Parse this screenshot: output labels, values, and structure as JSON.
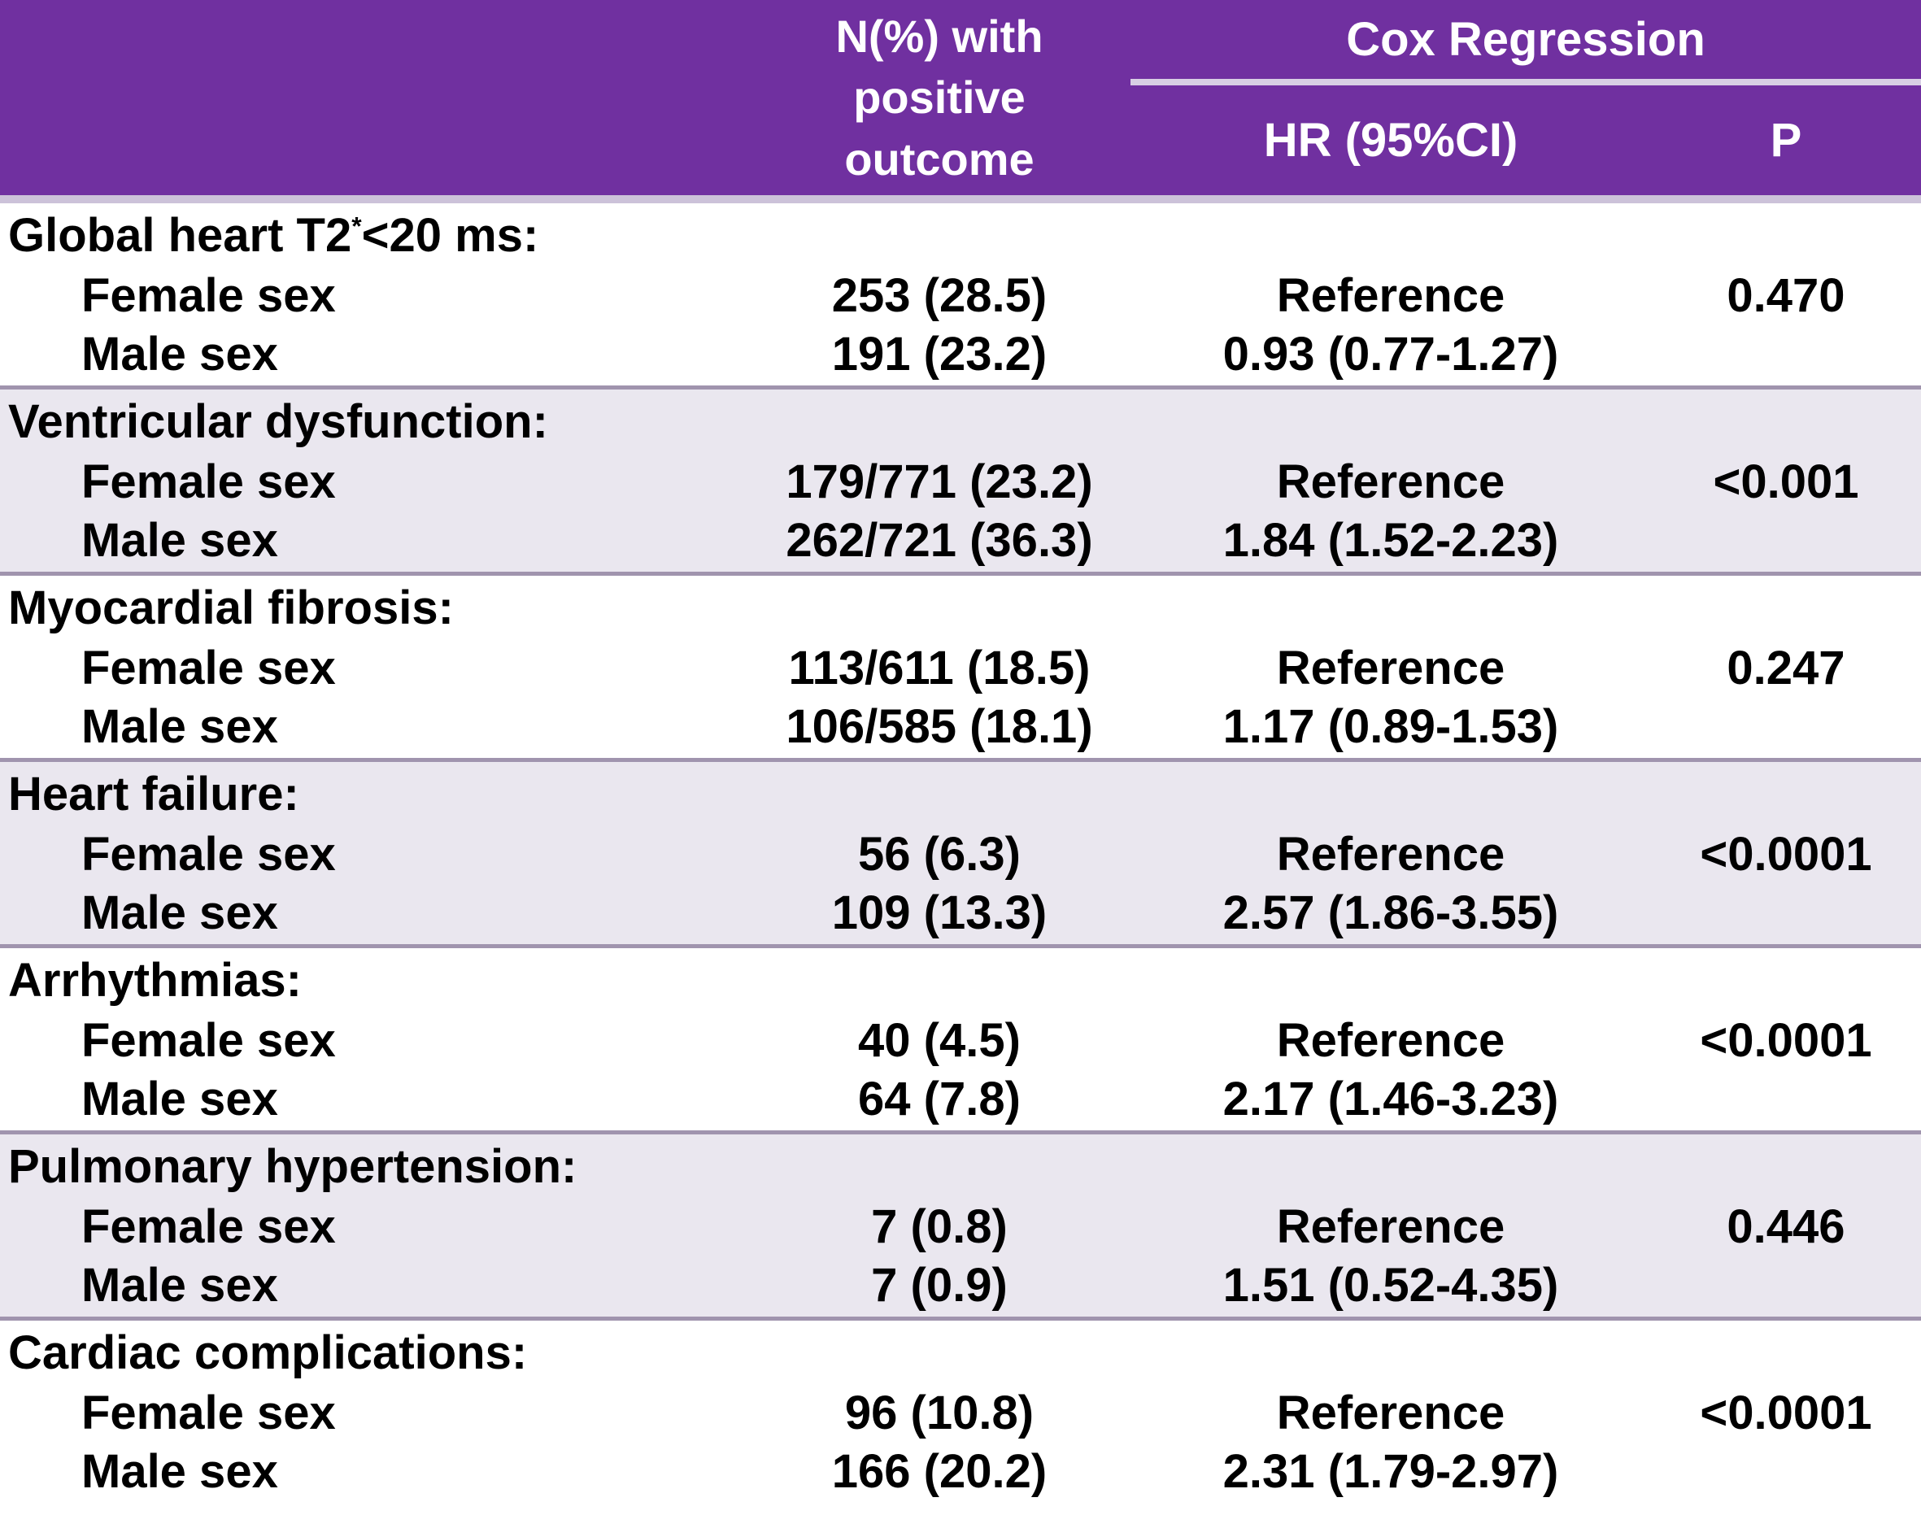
{
  "colors": {
    "header_bg": "#7030A0",
    "header_text": "#FFFFFF",
    "header_strip": "#CCC2D9",
    "header_rule": "#D8CFE4",
    "row_alt_bg": "#EAE7EF",
    "separator": "#A094AE",
    "body_text": "#000000"
  },
  "header": {
    "outcome_col": "N(%) with\npositive\noutcome",
    "cox_group": "Cox Regression",
    "hr_col": "HR (95%CI)",
    "p_col": "P"
  },
  "groups": [
    {
      "label_pre": "Global heart T2",
      "label_sup": "*",
      "label_post": "<20 ms:",
      "rows": [
        {
          "label": "Female sex",
          "n": "253 (28.5)",
          "hr": "Reference",
          "p": "0.470"
        },
        {
          "label": "Male sex",
          "n": "191 (23.2)",
          "hr": "0.93 (0.77-1.27)",
          "p": ""
        }
      ]
    },
    {
      "label_pre": "Ventricular dysfunction:",
      "label_sup": "",
      "label_post": "",
      "rows": [
        {
          "label": "Female sex",
          "n": "179/771 (23.2)",
          "hr": "Reference",
          "p": "<0.001"
        },
        {
          "label": "Male sex",
          "n": "262/721 (36.3)",
          "hr": "1.84 (1.52-2.23)",
          "p": ""
        }
      ]
    },
    {
      "label_pre": "Myocardial fibrosis:",
      "label_sup": "",
      "label_post": "",
      "rows": [
        {
          "label": "Female sex",
          "n": "113/611 (18.5)",
          "hr": "Reference",
          "p": "0.247"
        },
        {
          "label": "Male sex",
          "n": "106/585 (18.1)",
          "hr": "1.17 (0.89-1.53)",
          "p": ""
        }
      ]
    },
    {
      "label_pre": "Heart failure:",
      "label_sup": "",
      "label_post": "",
      "rows": [
        {
          "label": "Female sex",
          "n": "56 (6.3)",
          "hr": "Reference",
          "p": "<0.0001"
        },
        {
          "label": "Male sex",
          "n": "109 (13.3)",
          "hr": "2.57 (1.86-3.55)",
          "p": ""
        }
      ]
    },
    {
      "label_pre": "Arrhythmias:",
      "label_sup": "",
      "label_post": "",
      "rows": [
        {
          "label": "Female sex",
          "n": "40 (4.5)",
          "hr": "Reference",
          "p": "<0.0001"
        },
        {
          "label": "Male sex",
          "n": "64 (7.8)",
          "hr": "2.17 (1.46-3.23)",
          "p": ""
        }
      ]
    },
    {
      "label_pre": "Pulmonary hypertension:",
      "label_sup": "",
      "label_post": "",
      "rows": [
        {
          "label": "Female sex",
          "n": "7 (0.8)",
          "hr": "Reference",
          "p": "0.446"
        },
        {
          "label": "Male sex",
          "n": "7 (0.9)",
          "hr": "1.51 (0.52-4.35)",
          "p": ""
        }
      ]
    },
    {
      "label_pre": "Cardiac complications:",
      "label_sup": "",
      "label_post": "",
      "rows": [
        {
          "label": "Female sex",
          "n": "96 (10.8)",
          "hr": "Reference",
          "p": "<0.0001"
        },
        {
          "label": "Male sex",
          "n": "166 (20.2)",
          "hr": "2.31 (1.79-2.97)",
          "p": ""
        }
      ]
    }
  ],
  "chart_data": {
    "type": "table",
    "title": "",
    "column_group_header": {
      "label": "Cox Regression",
      "spans": [
        "HR (95%CI)",
        "P"
      ]
    },
    "columns": [
      "",
      "N(%) with positive outcome",
      "HR (95%CI)",
      "P"
    ],
    "rows": [
      [
        "Global heart T2*<20 ms:",
        "",
        "",
        ""
      ],
      [
        "Female sex",
        "253 (28.5)",
        "Reference",
        "0.470"
      ],
      [
        "Male sex",
        "191 (23.2)",
        "0.93 (0.77-1.27)",
        ""
      ],
      [
        "Ventricular dysfunction:",
        "",
        "",
        ""
      ],
      [
        "Female sex",
        "179/771 (23.2)",
        "Reference",
        "<0.001"
      ],
      [
        "Male sex",
        "262/721 (36.3)",
        "1.84 (1.52-2.23)",
        ""
      ],
      [
        "Myocardial fibrosis:",
        "",
        "",
        ""
      ],
      [
        "Female sex",
        "113/611 (18.5)",
        "Reference",
        "0.247"
      ],
      [
        "Male sex",
        "106/585 (18.1)",
        "1.17 (0.89-1.53)",
        ""
      ],
      [
        "Heart failure:",
        "",
        "",
        ""
      ],
      [
        "Female sex",
        "56 (6.3)",
        "Reference",
        "<0.0001"
      ],
      [
        "Male sex",
        "109 (13.3)",
        "2.57 (1.86-3.55)",
        ""
      ],
      [
        "Arrhythmias:",
        "",
        "",
        ""
      ],
      [
        "Female sex",
        "40 (4.5)",
        "Reference",
        "<0.0001"
      ],
      [
        "Male sex",
        "64 (7.8)",
        "2.17 (1.46-3.23)",
        ""
      ],
      [
        "Pulmonary hypertension:",
        "",
        "",
        ""
      ],
      [
        "Female sex",
        "7 (0.8)",
        "Reference",
        "0.446"
      ],
      [
        "Male sex",
        "7 (0.9)",
        "1.51 (0.52-4.35)",
        ""
      ],
      [
        "Cardiac complications:",
        "",
        "",
        ""
      ],
      [
        "Female sex",
        "96 (10.8)",
        "Reference",
        "<0.0001"
      ],
      [
        "Male sex",
        "166 (20.2)",
        "2.31 (1.79-2.97)",
        ""
      ]
    ],
    "layout": {
      "grid": "off",
      "striped_groups": true,
      "header_color": "#7030A0"
    }
  }
}
